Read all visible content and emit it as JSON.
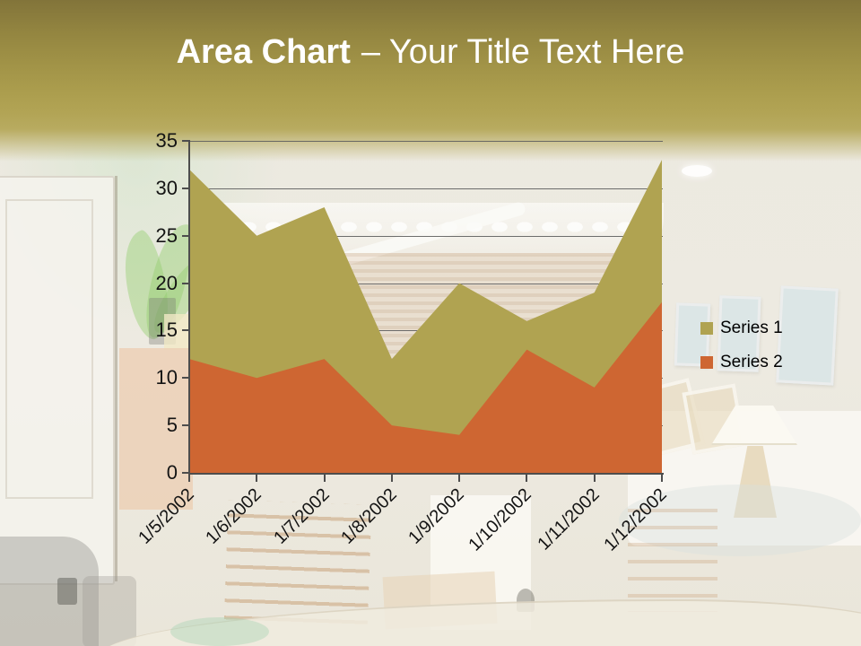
{
  "slide": {
    "title": {
      "bold": "Area Chart",
      "regular": "– Your Title Text Here"
    }
  },
  "chart_data": {
    "type": "area",
    "stacked": false,
    "title": "",
    "xlabel": "",
    "ylabel": "",
    "categories": [
      "1/5/2002",
      "1/6/2002",
      "1/7/2002",
      "1/8/2002",
      "1/9/2002",
      "1/10/2002",
      "1/11/2002",
      "1/12/2002"
    ],
    "series": [
      {
        "name": "Series 1",
        "color": "#b0a351",
        "values": [
          32,
          25,
          28,
          12,
          20,
          16,
          19,
          33
        ]
      },
      {
        "name": "Series 2",
        "color": "#ce6632",
        "values": [
          12,
          10,
          12,
          5,
          4,
          13,
          9,
          18
        ]
      }
    ],
    "ylim": [
      0,
      35
    ],
    "ytick_step": 5,
    "grid": true,
    "legend_position": "right",
    "axis_color": "#4d4d4d",
    "grid_color": "#5e5e5e",
    "tick_label_color": "#141414"
  }
}
